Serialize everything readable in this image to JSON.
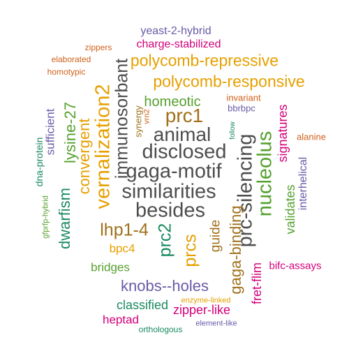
{
  "colors": {
    "dark": "#4d4d4d",
    "orange": "#e6a000",
    "brown": "#a0701a",
    "green": "#55a02e",
    "magenta": "#d4007a",
    "purple": "#6a5aa6",
    "rust": "#d0601a",
    "teal": "#1a8a60"
  },
  "words": [
    {
      "text": "yeast-2-hybrid",
      "color": "#6a5aa6"
    },
    {
      "text": "zippers",
      "color": "#d0601a"
    },
    {
      "text": "charge-stabilized",
      "color": "#d4007a"
    },
    {
      "text": "elaborated",
      "color": "#d0601a"
    },
    {
      "text": "polycomb-repressive",
      "color": "#e6a000"
    },
    {
      "text": "homotypic",
      "color": "#d0601a"
    },
    {
      "text": "polycomb-responsive",
      "color": "#e6a000"
    },
    {
      "text": "homeotic",
      "color": "#55a02e"
    },
    {
      "text": "invariant",
      "color": "#d0601a"
    },
    {
      "text": "bbrbpc",
      "color": "#6a5aa6"
    },
    {
      "text": "prc1",
      "color": "#a0701a"
    },
    {
      "text": "animal",
      "color": "#4d4d4d"
    },
    {
      "text": "disclosed",
      "color": "#4d4d4d"
    },
    {
      "text": "gaga-motif",
      "color": "#4d4d4d"
    },
    {
      "text": "alanine",
      "color": "#d0601a"
    },
    {
      "text": "similarities",
      "color": "#4d4d4d"
    },
    {
      "text": "besides",
      "color": "#4d4d4d"
    },
    {
      "text": "lhp1-4",
      "color": "#a0701a"
    },
    {
      "text": "bpc4",
      "color": "#e6a000"
    },
    {
      "text": "bridges",
      "color": "#55a02e"
    },
    {
      "text": "bifc-assays",
      "color": "#d4007a"
    },
    {
      "text": "knobs--holes",
      "color": "#6a5aa6"
    },
    {
      "text": "enzyme-linked",
      "color": "#e6a000"
    },
    {
      "text": "classified",
      "color": "#1a8a60"
    },
    {
      "text": "zipper-like",
      "color": "#d4007a"
    },
    {
      "text": "heptad",
      "color": "#d4007a"
    },
    {
      "text": "element-like",
      "color": "#6a5aa6"
    },
    {
      "text": "orthologous",
      "color": "#1a8a60"
    },
    {
      "text": "dna-protein",
      "color": "#1a8a60"
    },
    {
      "text": "sufficient",
      "color": "#6a5aa6"
    },
    {
      "text": "gfprfp-hybrid",
      "color": "#55a02e"
    },
    {
      "text": "dwarfism",
      "color": "#1a8a60"
    },
    {
      "text": "lysine-27",
      "color": "#55a02e"
    },
    {
      "text": "convergent",
      "color": "#e6a000"
    },
    {
      "text": "vernalization2",
      "color": "#e6a000"
    },
    {
      "text": "immunosorbant",
      "color": "#4d4d4d"
    },
    {
      "text": "synergy",
      "color": "#a0701a"
    },
    {
      "text": "vrn2",
      "color": "#d0601a"
    },
    {
      "text": "prc2",
      "color": "#1a8a60"
    },
    {
      "text": "prcs",
      "color": "#e6a000"
    },
    {
      "text": "guide",
      "color": "#a0701a"
    },
    {
      "text": "follow",
      "color": "#1a8a60"
    },
    {
      "text": "prc-silencing",
      "color": "#4d4d4d"
    },
    {
      "text": "gaga-binding",
      "color": "#a0701a"
    },
    {
      "text": "nucleolus",
      "color": "#55a02e"
    },
    {
      "text": "fret-flim",
      "color": "#d4007a"
    },
    {
      "text": "signatures",
      "color": "#d4007a"
    },
    {
      "text": "validates",
      "color": "#55a02e"
    },
    {
      "text": "interhelical",
      "color": "#6a5aa6"
    }
  ]
}
